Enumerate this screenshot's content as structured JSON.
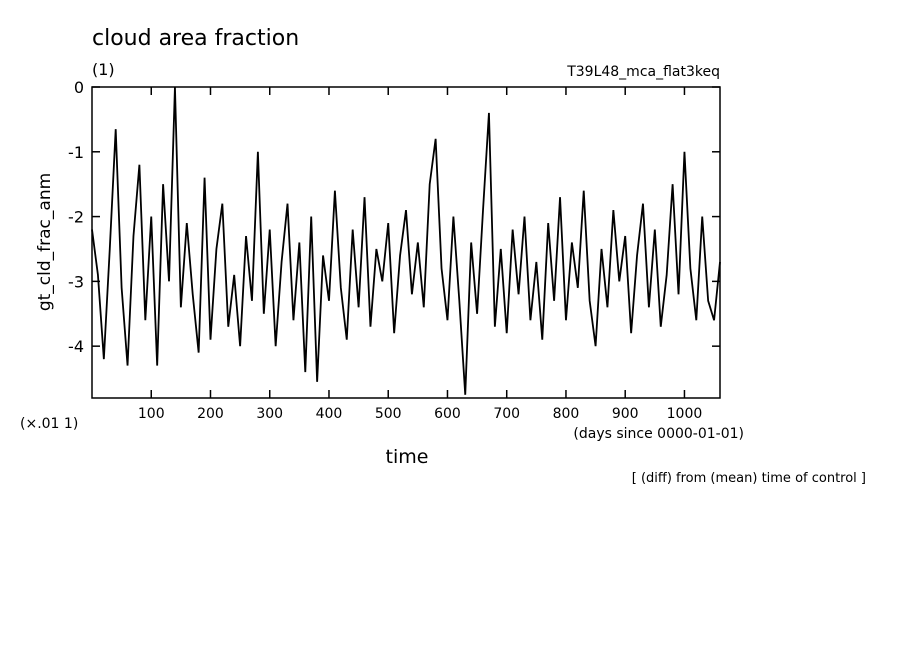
{
  "chart_data": {
    "type": "line",
    "title": "cloud area fraction",
    "subtitle": "(1)",
    "run_label": "T39L48_mca_flat3keq",
    "ylabel": "gt_cld_frac_anm",
    "scale_label": "(×.01 1)",
    "xunit_label": "(days since 0000-01-01)",
    "xlabel": "time",
    "note": "[ (diff) from (mean) time of control ]",
    "xlim": [
      0,
      1060
    ],
    "ylim": [
      -4.8,
      0
    ],
    "xticks": [
      100,
      200,
      300,
      400,
      500,
      600,
      700,
      800,
      900,
      1000
    ],
    "yticks": [
      0,
      -1,
      -2,
      -3,
      -4
    ],
    "x": [
      0,
      10,
      20,
      30,
      40,
      50,
      60,
      70,
      80,
      90,
      100,
      110,
      120,
      130,
      140,
      150,
      160,
      170,
      180,
      190,
      200,
      210,
      220,
      230,
      240,
      250,
      260,
      270,
      280,
      290,
      300,
      310,
      320,
      330,
      340,
      350,
      360,
      370,
      380,
      390,
      400,
      410,
      420,
      430,
      440,
      450,
      460,
      470,
      480,
      490,
      500,
      510,
      520,
      530,
      540,
      550,
      560,
      570,
      580,
      590,
      600,
      610,
      620,
      630,
      640,
      650,
      660,
      670,
      680,
      690,
      700,
      710,
      720,
      730,
      740,
      750,
      760,
      770,
      780,
      790,
      800,
      810,
      820,
      830,
      840,
      850,
      860,
      870,
      880,
      890,
      900,
      910,
      920,
      930,
      940,
      950,
      960,
      970,
      980,
      990,
      1000,
      1010,
      1020,
      1030,
      1040,
      1050,
      1060
    ],
    "series": [
      {
        "color": "#000000",
        "values": [
          -2.2,
          -2.9,
          -4.2,
          -2.5,
          -0.65,
          -3.1,
          -4.3,
          -2.3,
          -1.2,
          -3.6,
          -2.0,
          -4.3,
          -1.5,
          -3.0,
          0,
          -3.4,
          -2.1,
          -3.2,
          -4.1,
          -1.4,
          -3.9,
          -2.5,
          -1.8,
          -3.7,
          -2.9,
          -4.0,
          -2.3,
          -3.3,
          -1.0,
          -3.5,
          -2.2,
          -4.0,
          -2.7,
          -1.8,
          -3.6,
          -2.4,
          -4.4,
          -2.0,
          -4.55,
          -2.6,
          -3.3,
          -1.6,
          -3.1,
          -3.9,
          -2.2,
          -3.4,
          -1.7,
          -3.7,
          -2.5,
          -3.0,
          -2.1,
          -3.8,
          -2.6,
          -1.9,
          -3.2,
          -2.4,
          -3.4,
          -1.5,
          -0.8,
          -2.8,
          -3.6,
          -2.0,
          -3.3,
          -4.75,
          -2.4,
          -3.5,
          -1.9,
          -0.4,
          -3.7,
          -2.5,
          -3.8,
          -2.2,
          -3.2,
          -2.0,
          -3.6,
          -2.7,
          -3.9,
          -2.1,
          -3.3,
          -1.7,
          -3.6,
          -2.4,
          -3.1,
          -1.6,
          -3.3,
          -4.0,
          -2.5,
          -3.4,
          -1.9,
          -3.0,
          -2.3,
          -3.8,
          -2.6,
          -1.8,
          -3.4,
          -2.2,
          -3.7,
          -2.9,
          -1.5,
          -3.2,
          -1.0,
          -2.8,
          -3.6,
          -2.0,
          -3.3,
          -3.6,
          -2.7
        ]
      }
    ]
  }
}
